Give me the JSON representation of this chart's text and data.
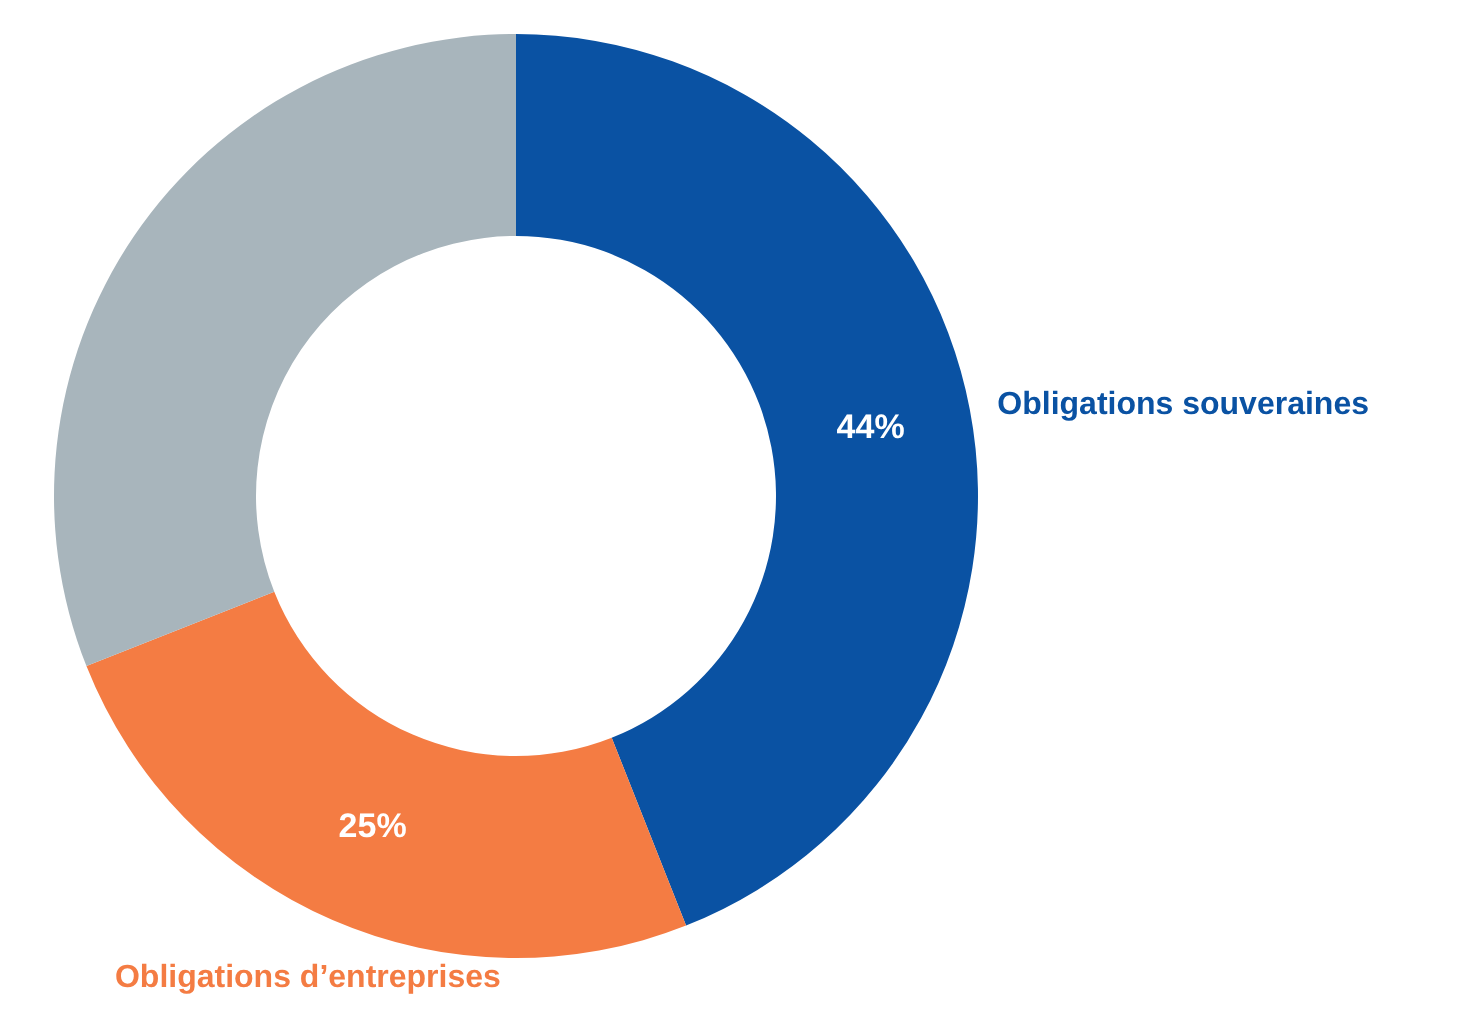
{
  "chart_data": {
    "type": "donut",
    "categories": [
      "Obligations souveraines",
      "Obligations d’entreprises",
      null
    ],
    "values": [
      44,
      25,
      31
    ],
    "colors": [
      "#0a52a3",
      "#f47c43",
      "#a8b5bc"
    ],
    "value_labels": [
      "44%",
      "25%",
      null
    ]
  }
}
